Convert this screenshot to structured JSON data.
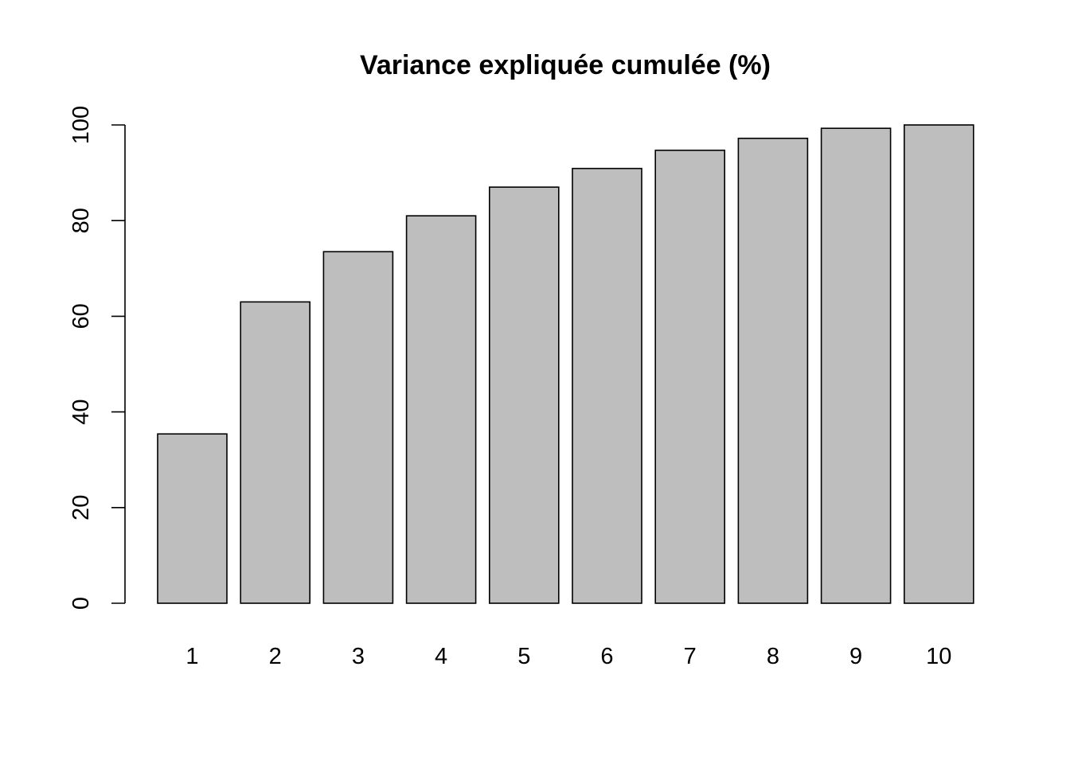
{
  "chart_data": {
    "type": "bar",
    "title": "Variance expliquée cumulée (%)",
    "xlabel": "",
    "ylabel": "",
    "categories": [
      "1",
      "2",
      "3",
      "4",
      "5",
      "6",
      "7",
      "8",
      "9",
      "10"
    ],
    "values": [
      35.4,
      63.0,
      73.5,
      81.0,
      87.0,
      90.9,
      94.7,
      97.2,
      99.3,
      100.0
    ],
    "ylim": [
      0,
      100
    ],
    "yticks": [
      0,
      20,
      40,
      60,
      80,
      100
    ],
    "ytick_labels": [
      "0",
      "20",
      "40",
      "60",
      "80",
      "100"
    ],
    "grid": false,
    "legend": "none",
    "bar_color": "#bebebe",
    "edge_color": "#000000"
  }
}
